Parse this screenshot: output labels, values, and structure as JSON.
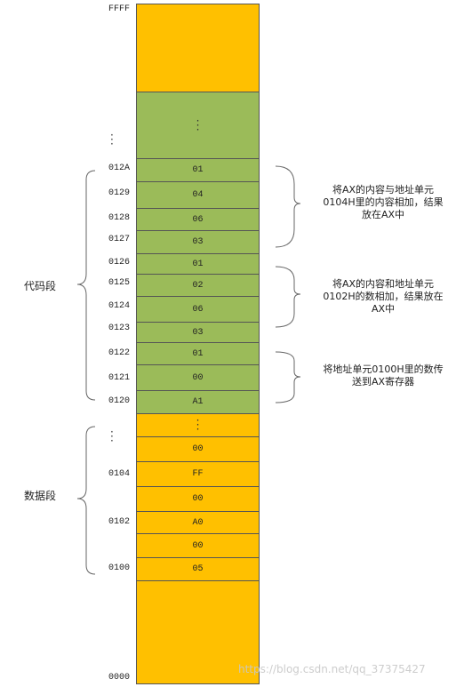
{
  "memory": {
    "top_address": "FFFF",
    "bottom_address": "0000",
    "ellipsis": "⋮",
    "code_cells": [
      {
        "addr": "012A",
        "value": "01"
      },
      {
        "addr": "0129",
        "value": "04"
      },
      {
        "addr": "0128",
        "value": "06"
      },
      {
        "addr": "0127",
        "value": "03"
      },
      {
        "addr": "0126",
        "value": "01"
      },
      {
        "addr": "0125",
        "value": "02"
      },
      {
        "addr": "0124",
        "value": "06"
      },
      {
        "addr": "0123",
        "value": "03"
      },
      {
        "addr": "0122",
        "value": "01"
      },
      {
        "addr": "0121",
        "value": "00"
      },
      {
        "addr": "0120",
        "value": "A1"
      }
    ],
    "data_cells": [
      {
        "addr": "",
        "value": "00"
      },
      {
        "addr": "0104",
        "value": "FF"
      },
      {
        "addr": "",
        "value": "00"
      },
      {
        "addr": "0102",
        "value": "A0"
      },
      {
        "addr": "",
        "value": "00"
      },
      {
        "addr": "0100",
        "value": "05"
      }
    ]
  },
  "segments": {
    "code_label": "代码段",
    "data_label": "数据段"
  },
  "notes": [
    {
      "lines": [
        "将AX的内容与地址单元",
        "0104H里的内容相加，结果",
        "放在AX中"
      ]
    },
    {
      "lines": [
        "将AX的内容和地址单元",
        "0102H的数相加，结果放在",
        "AX中"
      ]
    },
    {
      "lines": [
        "将地址单元0100H里的数传",
        "送到AX寄存器"
      ]
    }
  ],
  "watermark": "https://blog.csdn.net/qq_37375427",
  "colors": {
    "free": "#ffc000",
    "code": "#9bbb59",
    "border": "#555555"
  }
}
